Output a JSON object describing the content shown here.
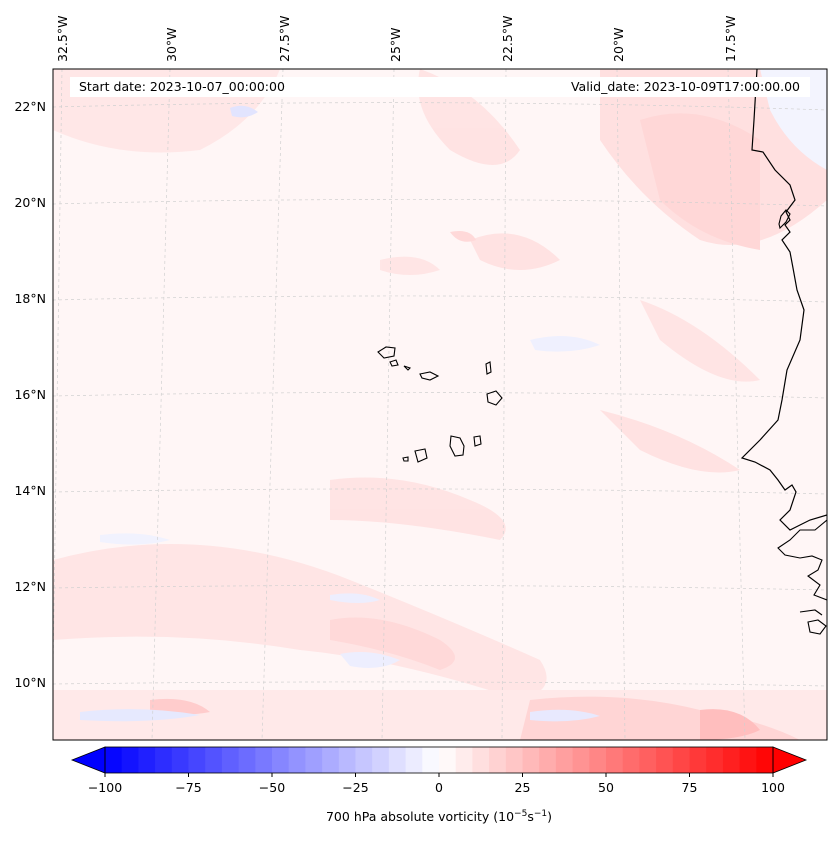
{
  "map": {
    "header": {
      "start_date": "Start date: 2023-10-07_00:00:00",
      "valid_date": "Valid_date: 2023-10-09T17:00:00.00"
    },
    "lon_labels": [
      "32.5°W",
      "30°W",
      "27.5°W",
      "25°W",
      "22.5°W",
      "20°W",
      "17.5°W"
    ],
    "lat_labels": [
      "22°N",
      "20°N",
      "18°N",
      "16°N",
      "14°N",
      "12°N",
      "10°N"
    ],
    "field": "700 hPa absolute vorticity",
    "gridlines": true
  },
  "colorbar": {
    "ticks": [
      "−100",
      "−75",
      "−50",
      "−25",
      "0",
      "25",
      "50",
      "75",
      "100"
    ],
    "label": "700 hPa absolute vorticity (10",
    "label_exp1": "−5",
    "label_mid": "s",
    "label_exp2": "−1",
    "label_end": ")",
    "range": [
      -100,
      100
    ],
    "colors": {
      "low": "#0000ff",
      "mid": "#ffffff",
      "high": "#ff0000"
    }
  },
  "colors": {
    "coast": "#000000",
    "grid": "#cccccc",
    "background_tint": "#fff4f4"
  }
}
